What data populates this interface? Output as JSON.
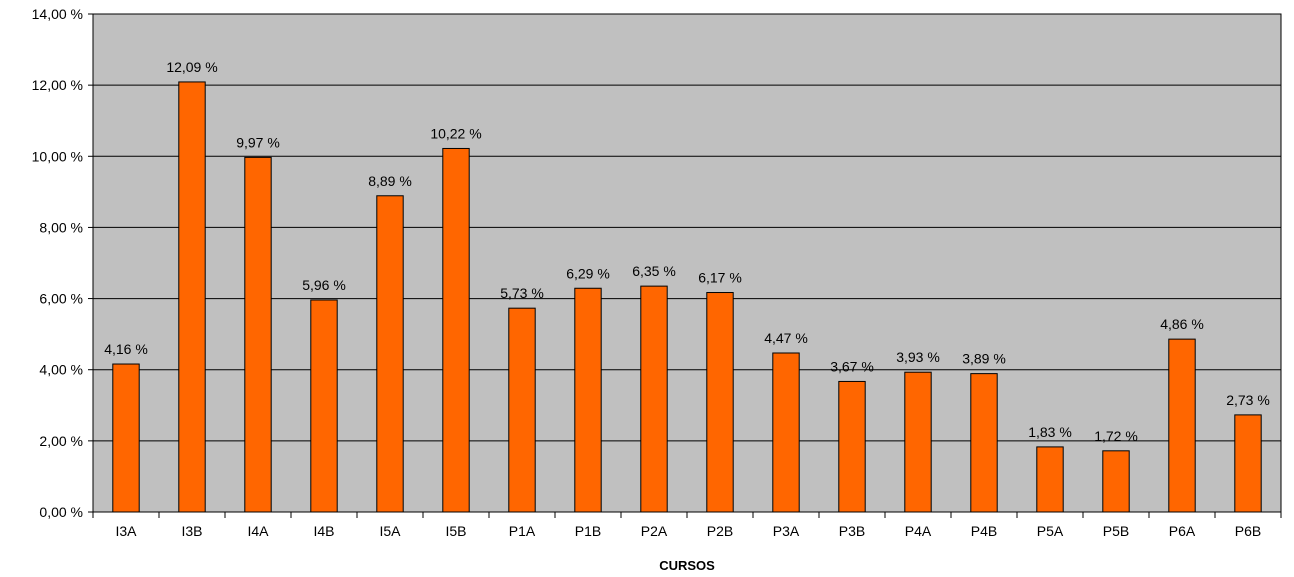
{
  "chart_data": {
    "type": "bar",
    "title": "",
    "xlabel": "CURSOS",
    "ylabel": "",
    "categories": [
      "I3A",
      "I3B",
      "I4A",
      "I4B",
      "I5A",
      "I5B",
      "P1A",
      "P1B",
      "P2A",
      "P2B",
      "P3A",
      "P3B",
      "P4A",
      "P4B",
      "P5A",
      "P5B",
      "P6A",
      "P6B"
    ],
    "values": [
      4.16,
      12.09,
      9.97,
      5.96,
      8.89,
      10.22,
      5.73,
      6.29,
      6.35,
      6.17,
      4.47,
      3.67,
      3.93,
      3.89,
      1.83,
      1.72,
      4.86,
      2.73
    ],
    "data_labels": [
      "4,16 %",
      "12,09 %",
      "9,97 %",
      "5,96 %",
      "8,89 %",
      "10,22 %",
      "5,73 %",
      "6,29 %",
      "6,35 %",
      "6,17 %",
      "4,47 %",
      "3,67 %",
      "3,93 %",
      "3,89 %",
      "1,83 %",
      "1,72 %",
      "4,86 %",
      "2,73 %"
    ],
    "ylim": [
      0,
      14
    ],
    "yticks": [
      0,
      2,
      4,
      6,
      8,
      10,
      12,
      14
    ],
    "ytick_labels": [
      "0,00 %",
      "2,00 %",
      "4,00 %",
      "6,00 %",
      "8,00 %",
      "10,00 %",
      "12,00 %",
      "14,00 %"
    ],
    "grid": true,
    "legend": "none",
    "colors": {
      "bar": "#FF6600",
      "bar_outline": "#000000",
      "plot_background": "#C0C0C0",
      "gridline": "#000000"
    }
  }
}
